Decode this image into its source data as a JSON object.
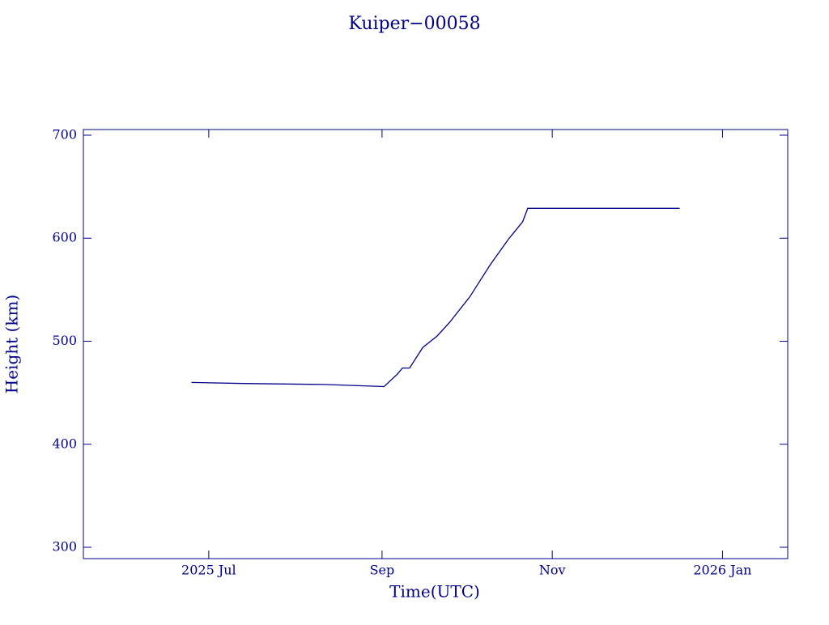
{
  "chart_data": {
    "type": "line",
    "title": "Kuiper−00058",
    "xlabel": "Time(UTC)",
    "ylabel": "Height (km)",
    "x": [
      2025.479,
      2025.53,
      2025.609,
      2025.668,
      2025.681,
      2025.686,
      2025.693,
      2025.706,
      2025.72,
      2025.732,
      2025.752,
      2025.772,
      2025.79,
      2025.804,
      2025.809,
      2025.848,
      2025.911,
      2025.958
    ],
    "series": [
      {
        "color": "#00008b",
        "values": [
          460,
          459,
          458,
          456,
          468,
          474,
          474,
          494,
          505,
          518,
          543,
          574,
          599,
          616,
          629,
          629,
          629,
          629
        ]
      }
    ],
    "xlim": [
      2025.373,
      2026.064
    ],
    "xticks": [
      {
        "value": 2025.496,
        "label": "2025 Jul"
      },
      {
        "value": 2025.666,
        "label": "Sep"
      },
      {
        "value": 2025.833,
        "label": "Nov"
      },
      {
        "value": 2026.0,
        "label": "2026 Jan"
      }
    ],
    "ylim": [
      289,
      705.5
    ],
    "yticks": [
      300,
      400,
      500,
      600,
      700
    ],
    "color": "#00008b"
  }
}
